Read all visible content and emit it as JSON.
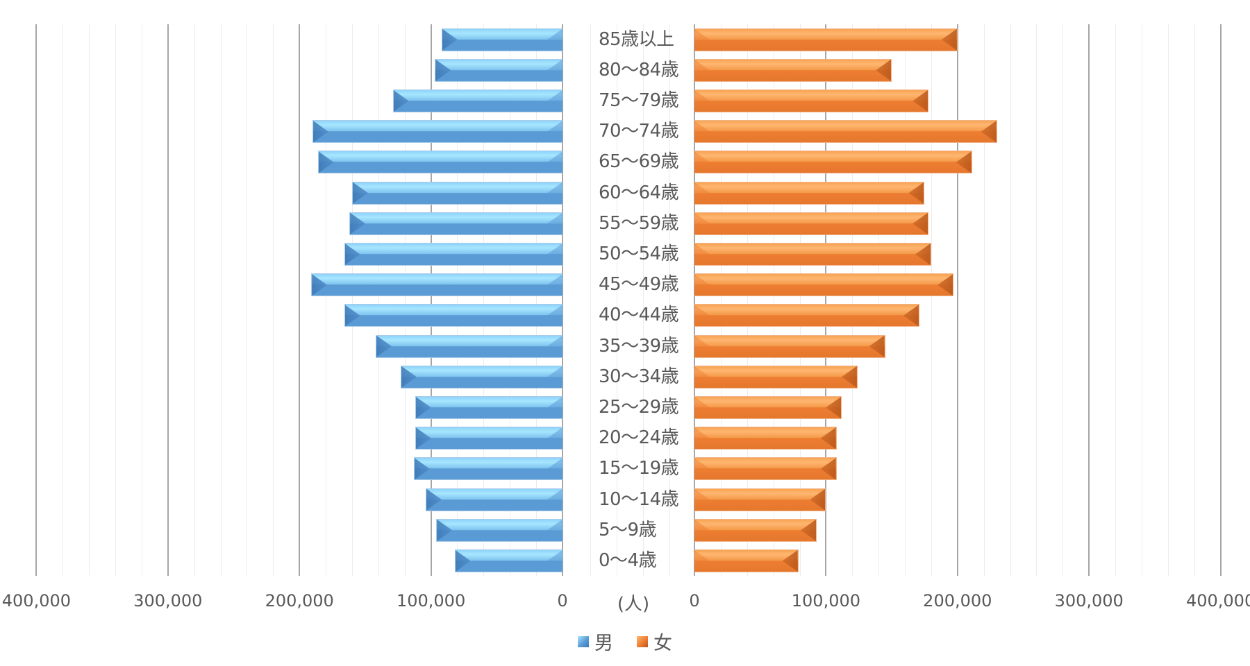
{
  "chart_data": {
    "type": "bar",
    "subtype": "population-pyramid (horizontal bar, mirrored)",
    "title": "",
    "xlabel": "(人)",
    "ylabel": "",
    "categories": [
      "85歳以上",
      "80〜84歳",
      "75〜79歳",
      "70〜74歳",
      "65〜69歳",
      "60〜64歳",
      "55〜59歳",
      "50〜54歳",
      "45〜49歳",
      "40〜44歳",
      "35〜39歳",
      "30〜34歳",
      "25〜29歳",
      "20〜24歳",
      "15〜19歳",
      "10〜14歳",
      "5〜9歳",
      "0〜4歳"
    ],
    "series": [
      {
        "name": "男",
        "color": "#5b9bd5",
        "side": "left",
        "values": [
          92000,
          97000,
          129000,
          190000,
          186000,
          160000,
          162000,
          166000,
          191000,
          166000,
          142000,
          123000,
          112000,
          112000,
          113000,
          104000,
          96000,
          82000
        ]
      },
      {
        "name": "女",
        "color": "#ed7d31",
        "side": "right",
        "values": [
          200000,
          150000,
          178000,
          230000,
          211000,
          175000,
          178000,
          180000,
          197000,
          171000,
          145000,
          124000,
          112000,
          108000,
          108000,
          100000,
          93000,
          79000
        ]
      }
    ],
    "xlim": [
      0,
      400000
    ],
    "x_ticks_left": [
      "400,000",
      "300,000",
      "200,000",
      "100,000",
      "0"
    ],
    "x_ticks_right": [
      "0",
      "100,000",
      "200,000",
      "300,000",
      "400,000"
    ],
    "major_step": 100000,
    "minor_step": 20000,
    "grid": true,
    "legend": {
      "position": "bottom",
      "entries": [
        "男",
        "女"
      ]
    }
  },
  "axis": {
    "unit_label": "(人)",
    "left_ticks": [
      "400,000",
      "300,000",
      "200,000",
      "100,000",
      "0"
    ],
    "right_ticks": [
      "0",
      "100,000",
      "200,000",
      "300,000",
      "400,000"
    ]
  },
  "legend": {
    "male": "男",
    "female": "女"
  },
  "colors": {
    "male": "#5b9bd5",
    "female": "#ed7d31",
    "gridline_major": "#a6a6a6",
    "gridline_minor": "#ececec",
    "text": "#595959"
  }
}
